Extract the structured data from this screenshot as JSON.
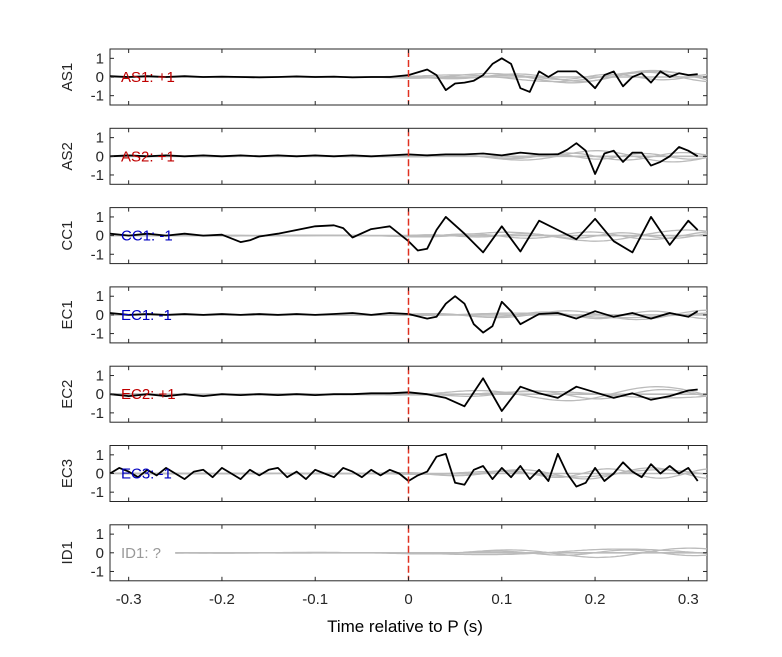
{
  "chart_data": {
    "type": "line",
    "xlabel": "Time relative to P (s)",
    "xlim": [
      -0.32,
      0.32
    ],
    "xticks": [
      -0.3,
      -0.2,
      -0.1,
      0,
      0.1,
      0.2,
      0.3
    ],
    "xtick_labels": [
      "-0.3",
      "-0.2",
      "-0.1",
      "0",
      "0.1",
      "0.2",
      "0.3"
    ],
    "ylim": [
      -1.5,
      1.5
    ],
    "yticks": [
      -1,
      0,
      1
    ],
    "ytick_labels": [
      "-1",
      "0",
      "1"
    ],
    "marker_x": 0,
    "colors": {
      "positive": "#c00000",
      "negative": "#0000c0",
      "unknown": "#999999",
      "trace": "#000000",
      "background_traces": "#bbbbbb",
      "marker": "#e03020"
    },
    "panels": [
      {
        "ylabel": "AS1",
        "annotation": "AS1: +1",
        "annotation_color": "#c00000",
        "x": [
          -0.32,
          -0.3,
          -0.28,
          -0.26,
          -0.24,
          -0.22,
          -0.2,
          -0.18,
          -0.16,
          -0.14,
          -0.12,
          -0.1,
          -0.08,
          -0.06,
          -0.04,
          -0.02,
          0,
          0.02,
          0.03,
          0.04,
          0.05,
          0.06,
          0.07,
          0.08,
          0.09,
          0.1,
          0.11,
          0.12,
          0.13,
          0.14,
          0.15,
          0.16,
          0.18,
          0.19,
          0.2,
          0.21,
          0.22,
          0.23,
          0.24,
          0.25,
          0.26,
          0.27,
          0.28,
          0.29,
          0.3,
          0.31
        ],
        "y": [
          0.05,
          0.0,
          0.05,
          0.0,
          0.05,
          0.0,
          0.02,
          0.0,
          -0.02,
          0.0,
          0.03,
          0.0,
          0.02,
          -0.02,
          0.0,
          0.0,
          0.1,
          0.4,
          0.1,
          -0.7,
          -0.35,
          -0.3,
          -0.2,
          0.1,
          0.7,
          1.0,
          0.7,
          -0.6,
          -0.8,
          0.3,
          0.0,
          0.3,
          0.3,
          -0.1,
          -0.6,
          0.1,
          0.3,
          -0.5,
          0.0,
          0.2,
          -0.3,
          0.3,
          0.0,
          0.2,
          0.1,
          0.15
        ],
        "background": [
          {
            "amp": 0.35,
            "freq": 5.5,
            "phase": 0.3
          },
          {
            "amp": 0.25,
            "freq": 7.0,
            "phase": 1.4
          },
          {
            "amp": 0.15,
            "freq": 9.0,
            "phase": 2.6
          },
          {
            "amp": 0.3,
            "freq": 4.5,
            "phase": 4.0
          }
        ]
      },
      {
        "ylabel": "AS2",
        "annotation": "AS2: +1",
        "annotation_color": "#c00000",
        "x": [
          -0.32,
          -0.3,
          -0.28,
          -0.26,
          -0.24,
          -0.22,
          -0.2,
          -0.18,
          -0.16,
          -0.14,
          -0.12,
          -0.1,
          -0.08,
          -0.06,
          -0.04,
          -0.02,
          0,
          0.02,
          0.04,
          0.06,
          0.08,
          0.1,
          0.12,
          0.14,
          0.16,
          0.17,
          0.18,
          0.19,
          0.2,
          0.21,
          0.22,
          0.23,
          0.24,
          0.25,
          0.26,
          0.27,
          0.28,
          0.29,
          0.3,
          0.31
        ],
        "y": [
          0.0,
          0.05,
          0.0,
          0.05,
          0.0,
          0.05,
          0.0,
          0.05,
          0.0,
          0.05,
          0.0,
          0.05,
          0.0,
          0.05,
          0.0,
          0.05,
          0.1,
          0.05,
          0.1,
          0.1,
          0.15,
          0.05,
          0.2,
          0.1,
          0.1,
          0.35,
          0.7,
          0.3,
          -0.95,
          0.15,
          0.3,
          -0.3,
          0.2,
          0.2,
          -0.5,
          -0.3,
          0.0,
          0.5,
          0.3,
          0.0
        ],
        "background": [
          {
            "amp": 0.3,
            "freq": 6.0,
            "phase": 0.8
          },
          {
            "amp": 0.2,
            "freq": 8.0,
            "phase": 2.1
          },
          {
            "amp": 0.15,
            "freq": 10.0,
            "phase": 3.3
          }
        ]
      },
      {
        "ylabel": "CC1",
        "annotation": "CC1: -1",
        "annotation_color": "#0000c0",
        "x": [
          -0.32,
          -0.3,
          -0.28,
          -0.26,
          -0.24,
          -0.22,
          -0.2,
          -0.18,
          -0.17,
          -0.16,
          -0.14,
          -0.12,
          -0.1,
          -0.08,
          -0.07,
          -0.06,
          -0.04,
          -0.02,
          0,
          0.01,
          0.02,
          0.03,
          0.04,
          0.06,
          0.08,
          0.1,
          0.12,
          0.14,
          0.16,
          0.18,
          0.2,
          0.22,
          0.24,
          0.26,
          0.28,
          0.3,
          0.31
        ],
        "y": [
          0.1,
          0.0,
          0.1,
          0.0,
          0.1,
          0.0,
          0.05,
          -0.35,
          -0.25,
          -0.05,
          0.1,
          0.3,
          0.5,
          0.55,
          0.4,
          -0.1,
          0.35,
          0.5,
          -0.3,
          -0.8,
          -0.7,
          0.3,
          1.0,
          0.1,
          -0.9,
          0.5,
          -0.85,
          0.8,
          0.3,
          -0.2,
          0.9,
          -0.3,
          -0.9,
          1.0,
          -0.5,
          0.8,
          0.3
        ],
        "background": [
          {
            "amp": 0.3,
            "freq": 5.0,
            "phase": 1.0
          },
          {
            "amp": 0.2,
            "freq": 7.5,
            "phase": 2.5
          },
          {
            "amp": 0.15,
            "freq": 9.5,
            "phase": 0.2
          }
        ]
      },
      {
        "ylabel": "EC1",
        "annotation": "EC1: -1",
        "annotation_color": "#0000c0",
        "x": [
          -0.32,
          -0.3,
          -0.28,
          -0.26,
          -0.24,
          -0.22,
          -0.2,
          -0.18,
          -0.16,
          -0.14,
          -0.12,
          -0.1,
          -0.08,
          -0.06,
          -0.04,
          -0.02,
          0,
          0.02,
          0.03,
          0.04,
          0.05,
          0.06,
          0.07,
          0.08,
          0.09,
          0.1,
          0.11,
          0.12,
          0.14,
          0.16,
          0.18,
          0.2,
          0.22,
          0.24,
          0.26,
          0.28,
          0.3,
          0.31
        ],
        "y": [
          0.1,
          0.0,
          0.05,
          0.0,
          0.05,
          0.0,
          0.05,
          0.0,
          0.05,
          0.0,
          0.05,
          0.0,
          0.05,
          0.1,
          0.0,
          0.1,
          0.05,
          -0.2,
          -0.1,
          0.6,
          1.0,
          0.6,
          -0.5,
          -0.95,
          -0.6,
          0.7,
          0.2,
          -0.5,
          0.05,
          0.1,
          -0.2,
          0.2,
          -0.1,
          0.1,
          -0.2,
          0.1,
          -0.1,
          0.2
        ],
        "background": [
          {
            "amp": 0.25,
            "freq": 6.5,
            "phase": 0.5
          },
          {
            "amp": 0.2,
            "freq": 8.5,
            "phase": 1.9
          },
          {
            "amp": 0.15,
            "freq": 4.0,
            "phase": 3.5
          }
        ]
      },
      {
        "ylabel": "EC2",
        "annotation": "EC2: +1",
        "annotation_color": "#c00000",
        "x": [
          -0.32,
          -0.3,
          -0.28,
          -0.26,
          -0.24,
          -0.22,
          -0.2,
          -0.18,
          -0.16,
          -0.14,
          -0.12,
          -0.1,
          -0.08,
          -0.06,
          -0.04,
          -0.02,
          0,
          0.02,
          0.04,
          0.06,
          0.08,
          0.1,
          0.12,
          0.14,
          0.16,
          0.18,
          0.2,
          0.22,
          0.24,
          0.26,
          0.28,
          0.3,
          0.31
        ],
        "y": [
          0.0,
          -0.1,
          0.0,
          -0.1,
          0.0,
          -0.1,
          0.0,
          -0.05,
          0.0,
          -0.05,
          0.0,
          -0.05,
          0.0,
          0.0,
          0.05,
          0.05,
          0.1,
          0.0,
          -0.2,
          -0.65,
          0.85,
          -0.9,
          0.4,
          0.05,
          -0.2,
          0.4,
          0.1,
          -0.2,
          0.05,
          -0.3,
          -0.1,
          0.2,
          0.25
        ],
        "background": [
          {
            "amp": 0.4,
            "freq": 5.0,
            "phase": 2.0
          },
          {
            "amp": 0.25,
            "freq": 7.0,
            "phase": 0.6
          },
          {
            "amp": 0.2,
            "freq": 3.5,
            "phase": 4.2
          }
        ]
      },
      {
        "ylabel": "EC3",
        "annotation": "EC3: -1",
        "annotation_color": "#0000c0",
        "x": [
          -0.32,
          -0.31,
          -0.3,
          -0.29,
          -0.28,
          -0.27,
          -0.26,
          -0.25,
          -0.24,
          -0.23,
          -0.22,
          -0.21,
          -0.2,
          -0.19,
          -0.18,
          -0.17,
          -0.16,
          -0.15,
          -0.14,
          -0.13,
          -0.12,
          -0.11,
          -0.1,
          -0.09,
          -0.08,
          -0.07,
          -0.06,
          -0.05,
          -0.04,
          -0.03,
          -0.02,
          -0.01,
          0,
          0.01,
          0.02,
          0.03,
          0.04,
          0.05,
          0.06,
          0.07,
          0.08,
          0.09,
          0.1,
          0.11,
          0.12,
          0.13,
          0.14,
          0.15,
          0.16,
          0.17,
          0.18,
          0.19,
          0.2,
          0.21,
          0.22,
          0.23,
          0.24,
          0.25,
          0.26,
          0.27,
          0.28,
          0.29,
          0.3,
          0.31
        ],
        "y": [
          0.0,
          0.3,
          0.1,
          -0.2,
          0.2,
          -0.1,
          0.3,
          0.0,
          -0.3,
          0.1,
          0.2,
          -0.2,
          0.3,
          0.0,
          -0.3,
          0.2,
          -0.1,
          0.2,
          0.3,
          -0.2,
          0.1,
          -0.3,
          0.2,
          0.0,
          -0.2,
          0.3,
          0.1,
          -0.2,
          0.2,
          -0.1,
          0.2,
          0.0,
          -0.4,
          -0.1,
          0.1,
          0.9,
          1.05,
          -0.5,
          -0.6,
          0.2,
          0.4,
          -0.3,
          0.3,
          -0.2,
          0.4,
          -0.3,
          0.2,
          -0.4,
          1.05,
          0.0,
          -0.7,
          -0.5,
          0.3,
          -0.4,
          0.0,
          0.6,
          0.1,
          -0.2,
          0.5,
          0.0,
          0.4,
          0.0,
          0.3,
          -0.4
        ],
        "background": [
          {
            "amp": 0.3,
            "freq": 7.0,
            "phase": 1.2
          },
          {
            "amp": 0.25,
            "freq": 9.0,
            "phase": 2.8
          },
          {
            "amp": 0.2,
            "freq": 5.5,
            "phase": 0.1
          }
        ]
      },
      {
        "ylabel": "ID1",
        "annotation": "ID1: ?",
        "annotation_color": "#999999",
        "x": [],
        "y": [],
        "background": [
          {
            "amp": 0.25,
            "freq": 5.0,
            "phase": 0.9
          },
          {
            "amp": 0.15,
            "freq": 7.0,
            "phase": 2.3
          },
          {
            "amp": 0.2,
            "freq": 3.0,
            "phase": 3.8
          }
        ]
      }
    ]
  }
}
